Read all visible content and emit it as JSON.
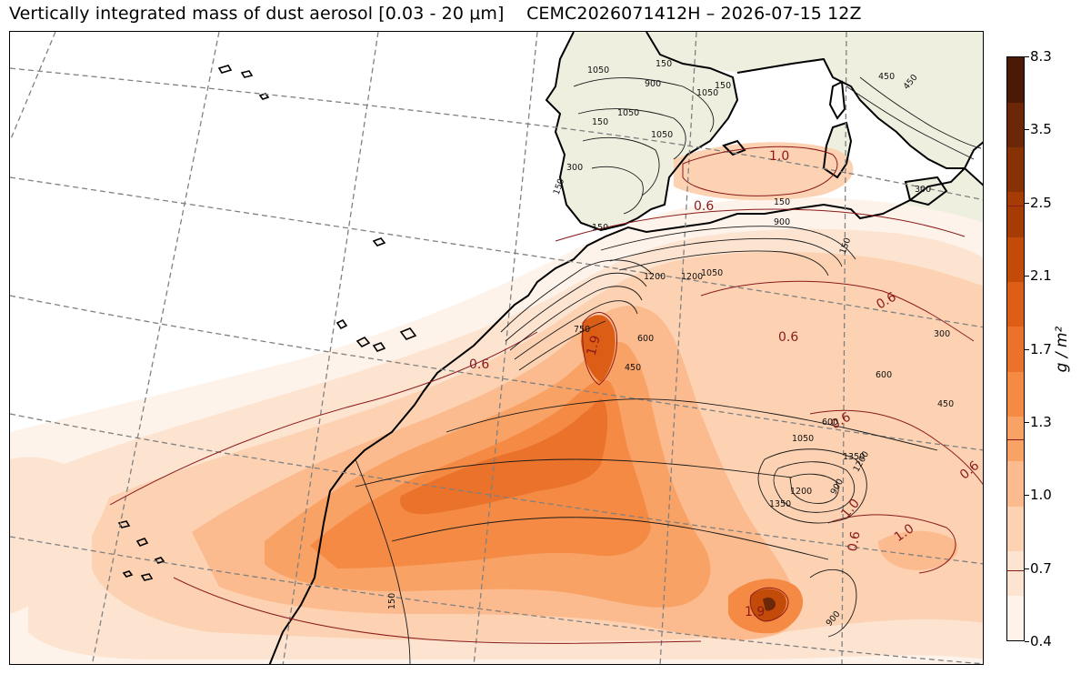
{
  "header": {
    "title": "Vertically integrated mass of dust aerosol [0.03 - 20 μm]",
    "run": "CEMC2026071412H – 2026-07-15 12Z"
  },
  "colorbar": {
    "unit_label": "g / m²",
    "ticks": [
      "8.3",
      "3.5",
      "2.5",
      "2.1",
      "1.7",
      "1.3",
      "1.0",
      "0.7",
      "0.4"
    ],
    "colors": [
      "#fef3ea",
      "#fde4d1",
      "#fcd2b3",
      "#fbbb8e",
      "#f9a266",
      "#f48a43",
      "#ea722b",
      "#dc5e16",
      "#c24b0a",
      "#a53c06",
      "#873205",
      "#6b2707",
      "#4a1a06"
    ]
  },
  "map": {
    "dust_contour_labels": [
      "1.0",
      "0.6",
      "0.6",
      "0.6",
      "1.9",
      "0.6",
      "0.6",
      "0.6",
      "1.0",
      "1.0",
      "0.6",
      "1.9"
    ],
    "orography_labels": [
      "1050",
      "150",
      "900",
      "1050",
      "150",
      "1050",
      "450",
      "1050",
      "300",
      "150",
      "150",
      "1200",
      "1200",
      "1050",
      "900",
      "150",
      "750",
      "150",
      "600",
      "450",
      "300",
      "600",
      "450",
      "600",
      "1050",
      "1350",
      "1200",
      "900",
      "1350",
      "1200",
      "900",
      "150",
      "450",
      "300",
      "150"
    ]
  }
}
